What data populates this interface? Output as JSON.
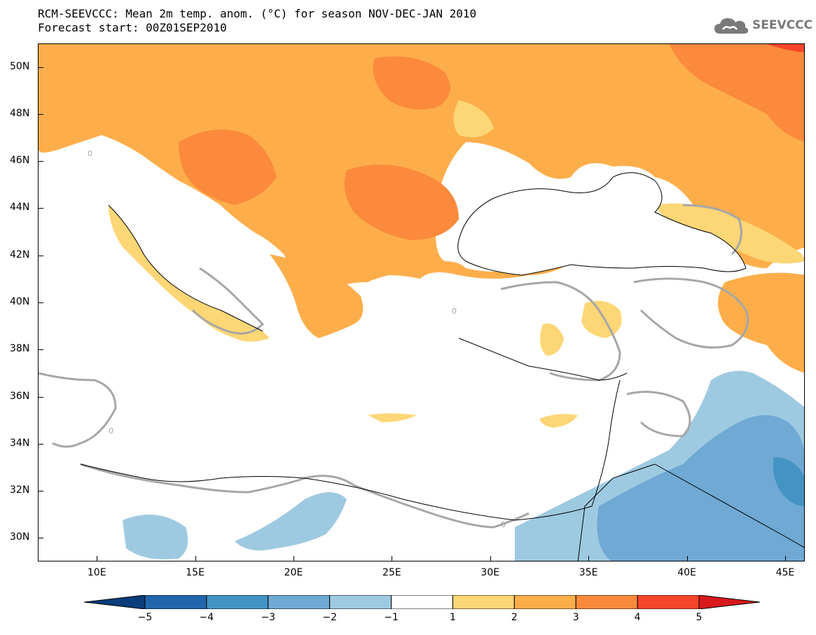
{
  "header": {
    "title_line1": "RCM-SEEVCCC: Mean 2m temp. anom. (°C) for season NOV-DEC-JAN 2010",
    "title_line2": "Forecast start: 00Z01SEP2010"
  },
  "logo": {
    "text": "SEEVCCC",
    "icon": "cloud-icon",
    "color": "#7a7a7a"
  },
  "map": {
    "lon_range": [
      7,
      46
    ],
    "lat_range": [
      29,
      51
    ],
    "lat_labels": [
      "50N",
      "48N",
      "46N",
      "44N",
      "42N",
      "40N",
      "38N",
      "36N",
      "34N",
      "32N",
      "30N"
    ],
    "lat_values": [
      50,
      48,
      46,
      44,
      42,
      40,
      38,
      36,
      34,
      32,
      30
    ],
    "lon_labels": [
      "10E",
      "15E",
      "20E",
      "25E",
      "30E",
      "35E",
      "40E",
      "45E"
    ],
    "lon_values": [
      10,
      15,
      20,
      25,
      30,
      35,
      40,
      45
    ],
    "contour_label": "0"
  },
  "colorbar": {
    "labels": [
      "−5",
      "−4",
      "−3",
      "−2",
      "−1",
      "1",
      "2",
      "3",
      "4",
      "5"
    ],
    "colors": [
      "#0a3d7a",
      "#2166ac",
      "#4393c3",
      "#6fa9d4",
      "#9ecae1",
      "#ffffff",
      "#fdd676",
      "#fdae4b",
      "#fb8a3c",
      "#f5452a",
      "#d7191c"
    ]
  },
  "palette": {
    "warm1": "#fdd676",
    "warm2": "#fdae4b",
    "warm3": "#fb8a3c",
    "warm4": "#f5452a",
    "cool1": "#9ecae1",
    "cool2": "#6fa9d4",
    "cool3": "#4393c3",
    "contour": "#a6a6a6"
  }
}
